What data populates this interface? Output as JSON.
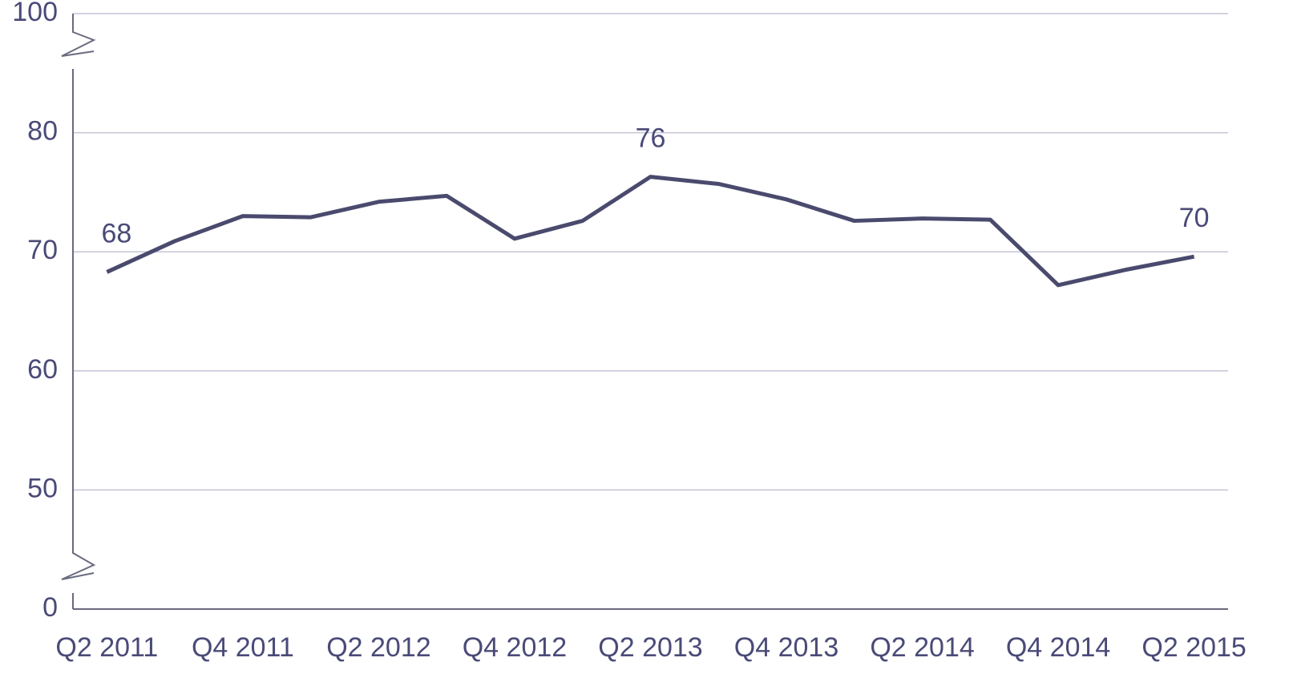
{
  "chart_data": {
    "type": "line",
    "categories": [
      "Q2 2011",
      null,
      "Q4 2011",
      null,
      "Q2 2012",
      null,
      "Q4 2012",
      null,
      "Q2 2013",
      null,
      "Q4 2013",
      null,
      "Q2 2014",
      null,
      "Q4 2014",
      null,
      "Q2 2015"
    ],
    "series": [
      {
        "name": null,
        "color": "#4a4a6e",
        "values": [
          68.3,
          70.9,
          73.0,
          72.9,
          74.2,
          74.7,
          71.1,
          72.6,
          76.3,
          75.7,
          74.4,
          72.6,
          72.8,
          72.7,
          67.2,
          68.5,
          69.6
        ],
        "value_labels": [
          "68",
          null,
          null,
          null,
          null,
          null,
          null,
          null,
          "76",
          null,
          null,
          null,
          null,
          null,
          null,
          null,
          "70"
        ]
      }
    ],
    "ylim": [
      0,
      100
    ],
    "yticks": [
      0,
      50,
      60,
      70,
      80,
      100
    ],
    "grid": true
  }
}
